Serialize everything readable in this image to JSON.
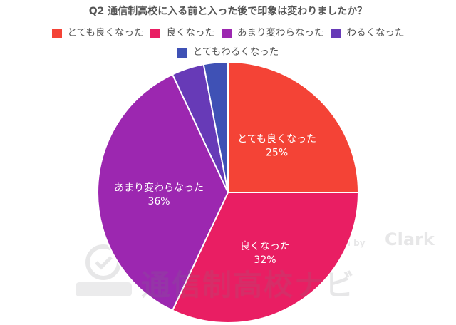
{
  "chart_data": {
    "type": "pie",
    "title": "Q2 通信制高校に入る前と入った後で印象は変わりましたか？",
    "slices": [
      {
        "label": "とても良くなった",
        "value": 25,
        "value_label": "25%",
        "color": "#f44336"
      },
      {
        "label": "良くなった",
        "value": 32,
        "value_label": "32%",
        "color": "#e91e63"
      },
      {
        "label": "あまり変わらなった",
        "value": 36,
        "value_label": "36%",
        "color": "#9c27b0"
      },
      {
        "label": "わるくなった",
        "value": 4,
        "value_label": "",
        "color": "#673ab7"
      },
      {
        "label": "とてもわるくなった",
        "value": 3,
        "value_label": "",
        "color": "#3f51b5"
      }
    ],
    "legend_position": "top",
    "start_angle": "12 o'clock, clockwise"
  },
  "watermark": {
    "text": "通信制高校ナビ",
    "produced_by": "Produced by",
    "brand": "Clark"
  }
}
